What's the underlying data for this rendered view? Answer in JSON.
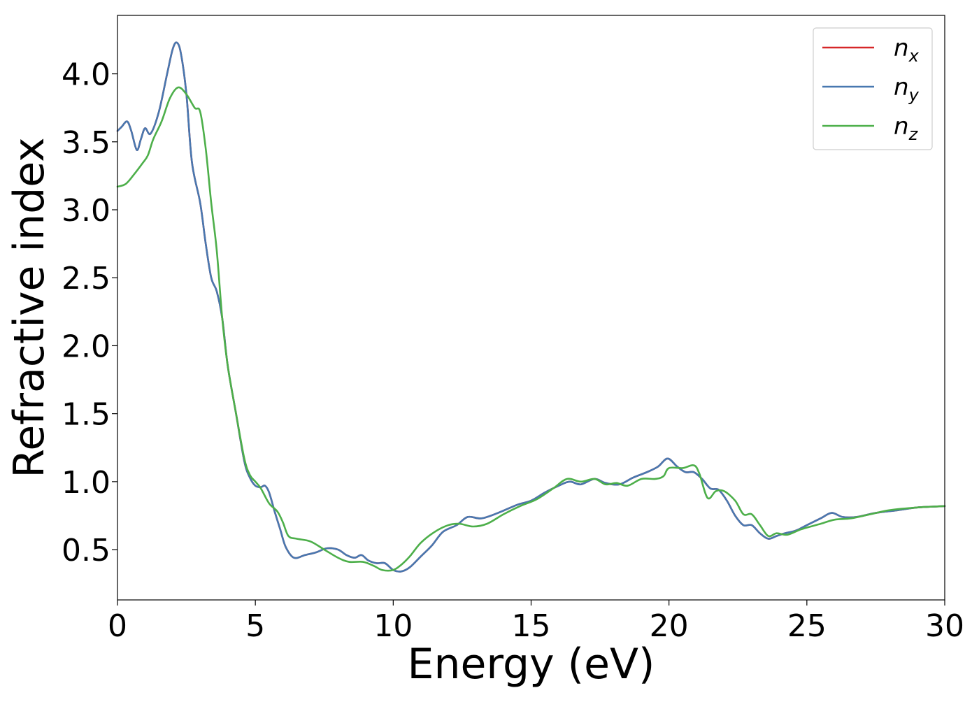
{
  "chart_data": {
    "type": "line",
    "title": "",
    "xlabel": "Energy (eV)",
    "ylabel": "Refractive index",
    "xlim": [
      0,
      30
    ],
    "ylim": [
      0.13,
      4.43
    ],
    "xticks": [
      0,
      5,
      10,
      15,
      20,
      25,
      30
    ],
    "xtick_labels": [
      "0",
      "5",
      "10",
      "15",
      "20",
      "25",
      "30"
    ],
    "yticks": [
      0.5,
      1.0,
      1.5,
      2.0,
      2.5,
      3.0,
      3.5,
      4.0
    ],
    "ytick_labels": [
      "0.5",
      "1.0",
      "1.5",
      "2.0",
      "2.5",
      "3.0",
      "3.5",
      "4.0"
    ],
    "grid": false,
    "legend_position": "top-right",
    "series": [
      {
        "name": "n_x",
        "legend_base": "n",
        "legend_sub": "x",
        "color": "#d62728",
        "points": [
          [
            0,
            3.58
          ],
          [
            0.15,
            3.61
          ],
          [
            0.35,
            3.65
          ],
          [
            0.5,
            3.58
          ],
          [
            0.7,
            3.44
          ],
          [
            0.85,
            3.52
          ],
          [
            1.0,
            3.6
          ],
          [
            1.2,
            3.56
          ],
          [
            1.5,
            3.72
          ],
          [
            1.8,
            4.0
          ],
          [
            2.0,
            4.18
          ],
          [
            2.15,
            4.23
          ],
          [
            2.3,
            4.15
          ],
          [
            2.5,
            3.85
          ],
          [
            2.7,
            3.35
          ],
          [
            3.0,
            3.05
          ],
          [
            3.2,
            2.75
          ],
          [
            3.4,
            2.5
          ],
          [
            3.6,
            2.4
          ],
          [
            3.8,
            2.2
          ],
          [
            4.0,
            1.85
          ],
          [
            4.3,
            1.5
          ],
          [
            4.6,
            1.15
          ],
          [
            4.8,
            1.03
          ],
          [
            5.0,
            0.97
          ],
          [
            5.2,
            0.96
          ],
          [
            5.35,
            0.97
          ],
          [
            5.5,
            0.92
          ],
          [
            5.7,
            0.78
          ],
          [
            5.9,
            0.65
          ],
          [
            6.1,
            0.52
          ],
          [
            6.4,
            0.44
          ],
          [
            6.8,
            0.46
          ],
          [
            7.2,
            0.48
          ],
          [
            7.6,
            0.51
          ],
          [
            8.0,
            0.5
          ],
          [
            8.3,
            0.46
          ],
          [
            8.6,
            0.44
          ],
          [
            8.85,
            0.46
          ],
          [
            9.1,
            0.42
          ],
          [
            9.4,
            0.4
          ],
          [
            9.7,
            0.4
          ],
          [
            10.0,
            0.35
          ],
          [
            10.3,
            0.34
          ],
          [
            10.6,
            0.37
          ],
          [
            11.0,
            0.45
          ],
          [
            11.4,
            0.53
          ],
          [
            11.8,
            0.63
          ],
          [
            12.3,
            0.68
          ],
          [
            12.7,
            0.74
          ],
          [
            13.2,
            0.73
          ],
          [
            13.8,
            0.77
          ],
          [
            14.5,
            0.83
          ],
          [
            15.0,
            0.86
          ],
          [
            15.5,
            0.92
          ],
          [
            16.0,
            0.97
          ],
          [
            16.4,
            1.0
          ],
          [
            16.8,
            0.98
          ],
          [
            17.3,
            1.02
          ],
          [
            17.7,
            0.99
          ],
          [
            18.2,
            0.98
          ],
          [
            18.7,
            1.03
          ],
          [
            19.2,
            1.07
          ],
          [
            19.6,
            1.11
          ],
          [
            19.95,
            1.17
          ],
          [
            20.3,
            1.11
          ],
          [
            20.6,
            1.07
          ],
          [
            20.9,
            1.07
          ],
          [
            21.2,
            1.02
          ],
          [
            21.5,
            0.95
          ],
          [
            21.8,
            0.94
          ],
          [
            22.1,
            0.86
          ],
          [
            22.4,
            0.75
          ],
          [
            22.7,
            0.68
          ],
          [
            23.0,
            0.68
          ],
          [
            23.3,
            0.62
          ],
          [
            23.6,
            0.58
          ],
          [
            23.9,
            0.6
          ],
          [
            24.2,
            0.62
          ],
          [
            24.6,
            0.64
          ],
          [
            25.0,
            0.68
          ],
          [
            25.5,
            0.73
          ],
          [
            25.9,
            0.77
          ],
          [
            26.3,
            0.74
          ],
          [
            26.8,
            0.74
          ],
          [
            27.5,
            0.77
          ],
          [
            28.3,
            0.79
          ],
          [
            29.0,
            0.81
          ],
          [
            30.0,
            0.82
          ]
        ]
      },
      {
        "name": "n_y",
        "legend_base": "n",
        "legend_sub": "y",
        "color": "#4878b0",
        "points": [
          [
            0,
            3.58
          ],
          [
            0.15,
            3.61
          ],
          [
            0.35,
            3.65
          ],
          [
            0.5,
            3.58
          ],
          [
            0.7,
            3.44
          ],
          [
            0.85,
            3.52
          ],
          [
            1.0,
            3.6
          ],
          [
            1.2,
            3.56
          ],
          [
            1.5,
            3.72
          ],
          [
            1.8,
            4.0
          ],
          [
            2.0,
            4.18
          ],
          [
            2.15,
            4.23
          ],
          [
            2.3,
            4.15
          ],
          [
            2.5,
            3.85
          ],
          [
            2.7,
            3.35
          ],
          [
            3.0,
            3.05
          ],
          [
            3.2,
            2.75
          ],
          [
            3.4,
            2.5
          ],
          [
            3.6,
            2.4
          ],
          [
            3.8,
            2.2
          ],
          [
            4.0,
            1.85
          ],
          [
            4.3,
            1.5
          ],
          [
            4.6,
            1.15
          ],
          [
            4.8,
            1.03
          ],
          [
            5.0,
            0.97
          ],
          [
            5.2,
            0.96
          ],
          [
            5.35,
            0.97
          ],
          [
            5.5,
            0.92
          ],
          [
            5.7,
            0.78
          ],
          [
            5.9,
            0.65
          ],
          [
            6.1,
            0.52
          ],
          [
            6.4,
            0.44
          ],
          [
            6.8,
            0.46
          ],
          [
            7.2,
            0.48
          ],
          [
            7.6,
            0.51
          ],
          [
            8.0,
            0.5
          ],
          [
            8.3,
            0.46
          ],
          [
            8.6,
            0.44
          ],
          [
            8.85,
            0.46
          ],
          [
            9.1,
            0.42
          ],
          [
            9.4,
            0.4
          ],
          [
            9.7,
            0.4
          ],
          [
            10.0,
            0.35
          ],
          [
            10.3,
            0.34
          ],
          [
            10.6,
            0.37
          ],
          [
            11.0,
            0.45
          ],
          [
            11.4,
            0.53
          ],
          [
            11.8,
            0.63
          ],
          [
            12.3,
            0.68
          ],
          [
            12.7,
            0.74
          ],
          [
            13.2,
            0.73
          ],
          [
            13.8,
            0.77
          ],
          [
            14.5,
            0.83
          ],
          [
            15.0,
            0.86
          ],
          [
            15.5,
            0.92
          ],
          [
            16.0,
            0.97
          ],
          [
            16.4,
            1.0
          ],
          [
            16.8,
            0.98
          ],
          [
            17.3,
            1.02
          ],
          [
            17.7,
            0.99
          ],
          [
            18.2,
            0.98
          ],
          [
            18.7,
            1.03
          ],
          [
            19.2,
            1.07
          ],
          [
            19.6,
            1.11
          ],
          [
            19.95,
            1.17
          ],
          [
            20.3,
            1.11
          ],
          [
            20.6,
            1.07
          ],
          [
            20.9,
            1.07
          ],
          [
            21.2,
            1.02
          ],
          [
            21.5,
            0.95
          ],
          [
            21.8,
            0.94
          ],
          [
            22.1,
            0.86
          ],
          [
            22.4,
            0.75
          ],
          [
            22.7,
            0.68
          ],
          [
            23.0,
            0.68
          ],
          [
            23.3,
            0.62
          ],
          [
            23.6,
            0.58
          ],
          [
            23.9,
            0.6
          ],
          [
            24.2,
            0.62
          ],
          [
            24.6,
            0.64
          ],
          [
            25.0,
            0.68
          ],
          [
            25.5,
            0.73
          ],
          [
            25.9,
            0.77
          ],
          [
            26.3,
            0.74
          ],
          [
            26.8,
            0.74
          ],
          [
            27.5,
            0.77
          ],
          [
            28.3,
            0.79
          ],
          [
            29.0,
            0.81
          ],
          [
            30.0,
            0.82
          ]
        ]
      },
      {
        "name": "n_z",
        "legend_base": "n",
        "legend_sub": "z",
        "color": "#4daf4a",
        "points": [
          [
            0,
            3.17
          ],
          [
            0.3,
            3.19
          ],
          [
            0.6,
            3.26
          ],
          [
            0.9,
            3.34
          ],
          [
            1.1,
            3.4
          ],
          [
            1.3,
            3.52
          ],
          [
            1.6,
            3.65
          ],
          [
            1.9,
            3.82
          ],
          [
            2.2,
            3.9
          ],
          [
            2.5,
            3.85
          ],
          [
            2.8,
            3.75
          ],
          [
            3.0,
            3.72
          ],
          [
            3.2,
            3.45
          ],
          [
            3.4,
            3.05
          ],
          [
            3.6,
            2.7
          ],
          [
            3.8,
            2.2
          ],
          [
            4.0,
            1.85
          ],
          [
            4.3,
            1.5
          ],
          [
            4.6,
            1.17
          ],
          [
            4.8,
            1.05
          ],
          [
            5.0,
            1.0
          ],
          [
            5.2,
            0.95
          ],
          [
            5.5,
            0.84
          ],
          [
            5.8,
            0.78
          ],
          [
            6.0,
            0.7
          ],
          [
            6.2,
            0.6
          ],
          [
            6.5,
            0.58
          ],
          [
            7.0,
            0.56
          ],
          [
            7.5,
            0.5
          ],
          [
            8.0,
            0.44
          ],
          [
            8.4,
            0.41
          ],
          [
            8.9,
            0.41
          ],
          [
            9.3,
            0.38
          ],
          [
            9.6,
            0.35
          ],
          [
            10.0,
            0.35
          ],
          [
            10.3,
            0.39
          ],
          [
            10.6,
            0.45
          ],
          [
            11.0,
            0.55
          ],
          [
            11.5,
            0.63
          ],
          [
            12.0,
            0.68
          ],
          [
            12.4,
            0.69
          ],
          [
            12.9,
            0.67
          ],
          [
            13.4,
            0.69
          ],
          [
            14.0,
            0.76
          ],
          [
            14.6,
            0.82
          ],
          [
            15.2,
            0.87
          ],
          [
            15.8,
            0.95
          ],
          [
            16.3,
            1.02
          ],
          [
            16.8,
            1.0
          ],
          [
            17.3,
            1.02
          ],
          [
            17.7,
            0.98
          ],
          [
            18.1,
            0.99
          ],
          [
            18.5,
            0.97
          ],
          [
            19.0,
            1.02
          ],
          [
            19.5,
            1.02
          ],
          [
            19.8,
            1.04
          ],
          [
            20.0,
            1.1
          ],
          [
            20.5,
            1.1
          ],
          [
            20.9,
            1.12
          ],
          [
            21.1,
            1.06
          ],
          [
            21.4,
            0.88
          ],
          [
            21.7,
            0.93
          ],
          [
            22.0,
            0.93
          ],
          [
            22.4,
            0.86
          ],
          [
            22.7,
            0.76
          ],
          [
            23.0,
            0.76
          ],
          [
            23.3,
            0.68
          ],
          [
            23.6,
            0.6
          ],
          [
            23.9,
            0.62
          ],
          [
            24.3,
            0.61
          ],
          [
            24.8,
            0.65
          ],
          [
            25.5,
            0.69
          ],
          [
            26.0,
            0.72
          ],
          [
            26.6,
            0.73
          ],
          [
            27.3,
            0.76
          ],
          [
            28.0,
            0.79
          ],
          [
            29.0,
            0.81
          ],
          [
            30.0,
            0.82
          ]
        ]
      }
    ]
  }
}
